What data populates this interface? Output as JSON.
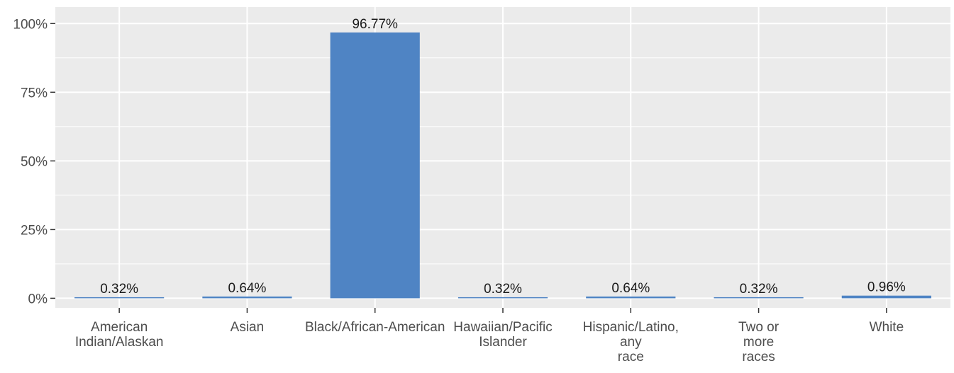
{
  "chart_data": {
    "type": "bar",
    "categories": [
      [
        "American",
        "Indian/Alaskan"
      ],
      [
        "Asian"
      ],
      [
        "Black/African-American"
      ],
      [
        "Hawaiian/Pacific",
        "Islander"
      ],
      [
        "Hispanic/Latino,",
        "any",
        "race"
      ],
      [
        "Two or",
        "more",
        "races"
      ],
      [
        "White"
      ]
    ],
    "values": [
      0.32,
      0.64,
      96.77,
      0.32,
      0.64,
      0.32,
      0.96
    ],
    "data_labels": [
      "0.32%",
      "0.64%",
      "96.77%",
      "0.32%",
      "0.64%",
      "0.32%",
      "0.96%"
    ],
    "y_ticks": [
      0,
      25,
      50,
      75,
      100
    ],
    "y_tick_labels": [
      "0%",
      "25%",
      "50%",
      "75%",
      "100%"
    ],
    "ylim": [
      -3.5,
      106
    ],
    "grid": true,
    "colors": {
      "bar": "#4f84c4",
      "panel": "#ebebeb",
      "grid": "#ffffff",
      "text": "#4d4d4d"
    }
  }
}
